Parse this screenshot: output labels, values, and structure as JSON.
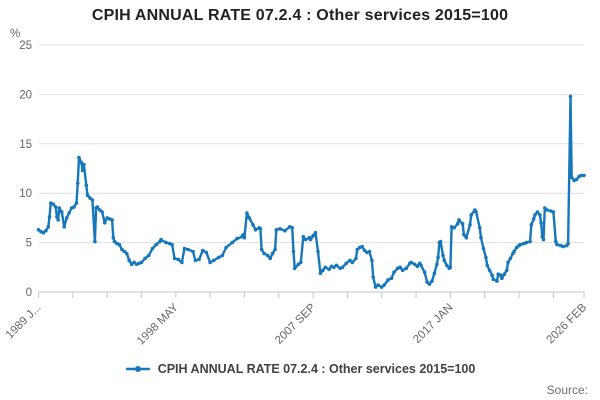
{
  "title": "CPIH ANNUAL RATE 07.2.4 : Other services 2015=100",
  "legend": {
    "label": "CPIH ANNUAL RATE 07.2.4 : Other services 2015=100"
  },
  "source_label": "Source:",
  "y_axis": {
    "unit_label": "%",
    "ticks": [
      0,
      5,
      10,
      15,
      20,
      25
    ],
    "min": 0,
    "max": 25
  },
  "x_axis": {
    "start": "1989-01",
    "end": "2026-02",
    "minor_tick_step_months": 28,
    "major_labels": [
      {
        "month_index": 0,
        "text": "1989 J..."
      },
      {
        "month_index": 112,
        "text": "1998 MAY"
      },
      {
        "month_index": 224,
        "text": "2007 SEP"
      },
      {
        "month_index": 336,
        "text": "2017 JAN"
      },
      {
        "month_index": 445,
        "text": "2026 FEB"
      }
    ]
  },
  "colors": {
    "series": "#1777bb",
    "grid": "#e0e0e0",
    "axis": "#c6d0da",
    "tick_text": "#666666",
    "title_text": "#222222",
    "legend_text": "#414042",
    "source_text": "#6f6f6f",
    "background": "#ffffff"
  },
  "chart_data": {
    "type": "line",
    "title": "CPIH ANNUAL RATE 07.2.4 : Other services 2015=100",
    "xlabel": "",
    "ylabel": "%",
    "ylim": [
      0,
      25
    ],
    "grid": "horizontal",
    "legend_position": "bottom",
    "x_tick_labels": [
      "1989 J...",
      "1998 MAY",
      "2007 SEP",
      "2017 JAN",
      "2026 FEB"
    ],
    "series": [
      {
        "name": "CPIH ANNUAL RATE 07.2.4 : Other services 2015=100",
        "color": "#1777bb",
        "points": [
          [
            "1989-01",
            6.3
          ],
          [
            "1989-03",
            6.1
          ],
          [
            "1989-05",
            6.0
          ],
          [
            "1989-07",
            6.2
          ],
          [
            "1989-09",
            6.6
          ],
          [
            "1989-10",
            7.6
          ],
          [
            "1989-11",
            9.0
          ],
          [
            "1990-01",
            8.9
          ],
          [
            "1990-03",
            8.6
          ],
          [
            "1990-04",
            7.6
          ],
          [
            "1990-05",
            7.3
          ],
          [
            "1990-06",
            8.5
          ],
          [
            "1990-08",
            8.1
          ],
          [
            "1990-10",
            6.6
          ],
          [
            "1990-12",
            7.5
          ],
          [
            "1991-02",
            8.0
          ],
          [
            "1991-04",
            8.5
          ],
          [
            "1991-06",
            8.6
          ],
          [
            "1991-08",
            9.0
          ],
          [
            "1991-09",
            11.0
          ],
          [
            "1991-10",
            13.6
          ],
          [
            "1991-12",
            13.1
          ],
          [
            "1992-01",
            12.3
          ],
          [
            "1992-02",
            12.9
          ],
          [
            "1992-04",
            10.8
          ],
          [
            "1992-05",
            9.8
          ],
          [
            "1992-07",
            9.5
          ],
          [
            "1992-09",
            9.3
          ],
          [
            "1992-11",
            5.1
          ],
          [
            "1992-12",
            8.5
          ],
          [
            "1993-01",
            8.6
          ],
          [
            "1993-03",
            8.3
          ],
          [
            "1993-05",
            8.1
          ],
          [
            "1993-07",
            7.0
          ],
          [
            "1993-09",
            7.5
          ],
          [
            "1993-11",
            7.4
          ],
          [
            "1994-01",
            7.3
          ],
          [
            "1994-02",
            5.5
          ],
          [
            "1994-03",
            5.1
          ],
          [
            "1994-05",
            4.9
          ],
          [
            "1994-07",
            4.8
          ],
          [
            "1994-09",
            4.3
          ],
          [
            "1994-11",
            4.1
          ],
          [
            "1995-01",
            3.9
          ],
          [
            "1995-03",
            3.2
          ],
          [
            "1995-05",
            2.8
          ],
          [
            "1995-07",
            3.0
          ],
          [
            "1995-09",
            2.8
          ],
          [
            "1995-11",
            2.9
          ],
          [
            "1996-01",
            3.0
          ],
          [
            "1996-04",
            3.4
          ],
          [
            "1996-07",
            3.7
          ],
          [
            "1996-10",
            4.4
          ],
          [
            "1997-01",
            4.8
          ],
          [
            "1997-04",
            5.1
          ],
          [
            "1997-05",
            5.3
          ],
          [
            "1997-09",
            5.0
          ],
          [
            "1997-12",
            4.9
          ],
          [
            "1998-02",
            4.8
          ],
          [
            "1998-04",
            3.4
          ],
          [
            "1998-07",
            3.3
          ],
          [
            "1998-10",
            3.0
          ],
          [
            "1998-12",
            4.4
          ],
          [
            "1999-03",
            4.3
          ],
          [
            "1999-07",
            4.1
          ],
          [
            "1999-09",
            3.2
          ],
          [
            "1999-12",
            3.3
          ],
          [
            "2000-03",
            4.2
          ],
          [
            "2000-06",
            4.0
          ],
          [
            "2000-09",
            3.0
          ],
          [
            "2000-12",
            3.2
          ],
          [
            "2001-04",
            3.5
          ],
          [
            "2001-07",
            3.7
          ],
          [
            "2001-10",
            4.5
          ],
          [
            "2002-03",
            5.0
          ],
          [
            "2002-07",
            5.4
          ],
          [
            "2002-11",
            5.6
          ],
          [
            "2002-12",
            5.8
          ],
          [
            "2003-01",
            5.5
          ],
          [
            "2003-03",
            8.0
          ],
          [
            "2003-05",
            7.5
          ],
          [
            "2003-08",
            6.8
          ],
          [
            "2003-10",
            6.3
          ],
          [
            "2004-01",
            6.5
          ],
          [
            "2004-02",
            6.4
          ],
          [
            "2004-03",
            4.3
          ],
          [
            "2004-05",
            3.9
          ],
          [
            "2004-08",
            3.7
          ],
          [
            "2004-10",
            3.4
          ],
          [
            "2004-12",
            3.9
          ],
          [
            "2005-02",
            4.3
          ],
          [
            "2005-03",
            6.3
          ],
          [
            "2005-06",
            6.4
          ],
          [
            "2005-10",
            6.2
          ],
          [
            "2006-02",
            6.6
          ],
          [
            "2006-04",
            6.5
          ],
          [
            "2006-05",
            4.1
          ],
          [
            "2006-06",
            2.4
          ],
          [
            "2006-09",
            2.8
          ],
          [
            "2006-11",
            3.0
          ],
          [
            "2007-01",
            5.6
          ],
          [
            "2007-03",
            5.3
          ],
          [
            "2007-06",
            5.5
          ],
          [
            "2007-07",
            5.3
          ],
          [
            "2007-09",
            5.7
          ],
          [
            "2007-11",
            6.0
          ],
          [
            "2008-01",
            4.1
          ],
          [
            "2008-03",
            1.9
          ],
          [
            "2008-05",
            2.2
          ],
          [
            "2008-07",
            2.5
          ],
          [
            "2008-10",
            2.3
          ],
          [
            "2008-12",
            2.6
          ],
          [
            "2009-02",
            2.5
          ],
          [
            "2009-04",
            2.7
          ],
          [
            "2009-07",
            2.4
          ],
          [
            "2009-09",
            2.5
          ],
          [
            "2009-12",
            2.9
          ],
          [
            "2010-03",
            3.2
          ],
          [
            "2010-05",
            3.0
          ],
          [
            "2010-08",
            3.4
          ],
          [
            "2010-09",
            4.3
          ],
          [
            "2010-11",
            4.5
          ],
          [
            "2011-01",
            4.6
          ],
          [
            "2011-03",
            4.2
          ],
          [
            "2011-05",
            4.0
          ],
          [
            "2011-07",
            4.1
          ],
          [
            "2011-09",
            3.2
          ],
          [
            "2011-10",
            1.5
          ],
          [
            "2011-12",
            0.5
          ],
          [
            "2012-02",
            0.7
          ],
          [
            "2012-05",
            0.5
          ],
          [
            "2012-07",
            0.7
          ],
          [
            "2012-10",
            1.2
          ],
          [
            "2013-01",
            1.4
          ],
          [
            "2013-03",
            2.0
          ],
          [
            "2013-06",
            2.4
          ],
          [
            "2013-08",
            2.5
          ],
          [
            "2013-10",
            2.2
          ],
          [
            "2014-01",
            2.4
          ],
          [
            "2014-04",
            2.9
          ],
          [
            "2014-05",
            3.0
          ],
          [
            "2014-08",
            2.8
          ],
          [
            "2014-10",
            2.6
          ],
          [
            "2014-12",
            2.9
          ],
          [
            "2015-01",
            2.7
          ],
          [
            "2015-04",
            2.0
          ],
          [
            "2015-06",
            1.0
          ],
          [
            "2015-08",
            0.8
          ],
          [
            "2015-10",
            1.1
          ],
          [
            "2015-12",
            1.9
          ],
          [
            "2016-02",
            2.8
          ],
          [
            "2016-03",
            3.5
          ],
          [
            "2016-04",
            5.0
          ],
          [
            "2016-05",
            5.1
          ],
          [
            "2016-07",
            3.7
          ],
          [
            "2016-08",
            3.2
          ],
          [
            "2016-10",
            2.7
          ],
          [
            "2016-12",
            2.4
          ],
          [
            "2017-01",
            2.5
          ],
          [
            "2017-02",
            6.6
          ],
          [
            "2017-04",
            6.5
          ],
          [
            "2017-07",
            6.9
          ],
          [
            "2017-08",
            7.3
          ],
          [
            "2017-11",
            6.9
          ],
          [
            "2017-12",
            5.8
          ],
          [
            "2018-02",
            5.5
          ],
          [
            "2018-05",
            6.8
          ],
          [
            "2018-06",
            7.8
          ],
          [
            "2018-09",
            8.3
          ],
          [
            "2018-10",
            8.1
          ],
          [
            "2019-01",
            6.5
          ],
          [
            "2019-02",
            5.5
          ],
          [
            "2019-04",
            4.4
          ],
          [
            "2019-06",
            3.5
          ],
          [
            "2019-07",
            2.7
          ],
          [
            "2019-09",
            2.2
          ],
          [
            "2019-11",
            1.7
          ],
          [
            "2019-12",
            1.3
          ],
          [
            "2020-03",
            1.1
          ],
          [
            "2020-04",
            1.8
          ],
          [
            "2020-06",
            1.7
          ],
          [
            "2020-07",
            1.4
          ],
          [
            "2020-09",
            1.8
          ],
          [
            "2020-11",
            2.2
          ],
          [
            "2020-12",
            3.0
          ],
          [
            "2021-02",
            3.4
          ],
          [
            "2021-04",
            3.9
          ],
          [
            "2021-05",
            4.1
          ],
          [
            "2021-07",
            4.5
          ],
          [
            "2021-09",
            4.7
          ],
          [
            "2021-10",
            4.8
          ],
          [
            "2022-01",
            4.9
          ],
          [
            "2022-03",
            5.0
          ],
          [
            "2022-06",
            5.1
          ],
          [
            "2022-07",
            6.8
          ],
          [
            "2022-09",
            7.4
          ],
          [
            "2022-10",
            7.8
          ],
          [
            "2022-12",
            8.1
          ],
          [
            "2023-02",
            7.8
          ],
          [
            "2023-03",
            7.0
          ],
          [
            "2023-04",
            5.6
          ],
          [
            "2023-05",
            5.3
          ],
          [
            "2023-06",
            8.5
          ],
          [
            "2023-08",
            8.3
          ],
          [
            "2023-11",
            8.2
          ],
          [
            "2024-01",
            8.1
          ],
          [
            "2024-03",
            5.1
          ],
          [
            "2024-04",
            4.8
          ],
          [
            "2024-07",
            4.7
          ],
          [
            "2024-09",
            4.6
          ],
          [
            "2024-12",
            4.7
          ],
          [
            "2025-01",
            4.9
          ],
          [
            "2025-03",
            19.8
          ],
          [
            "2025-04",
            11.6
          ],
          [
            "2025-06",
            11.3
          ],
          [
            "2025-08",
            11.4
          ],
          [
            "2025-10",
            11.7
          ],
          [
            "2025-12",
            11.8
          ],
          [
            "2026-02",
            11.8
          ]
        ]
      }
    ]
  }
}
